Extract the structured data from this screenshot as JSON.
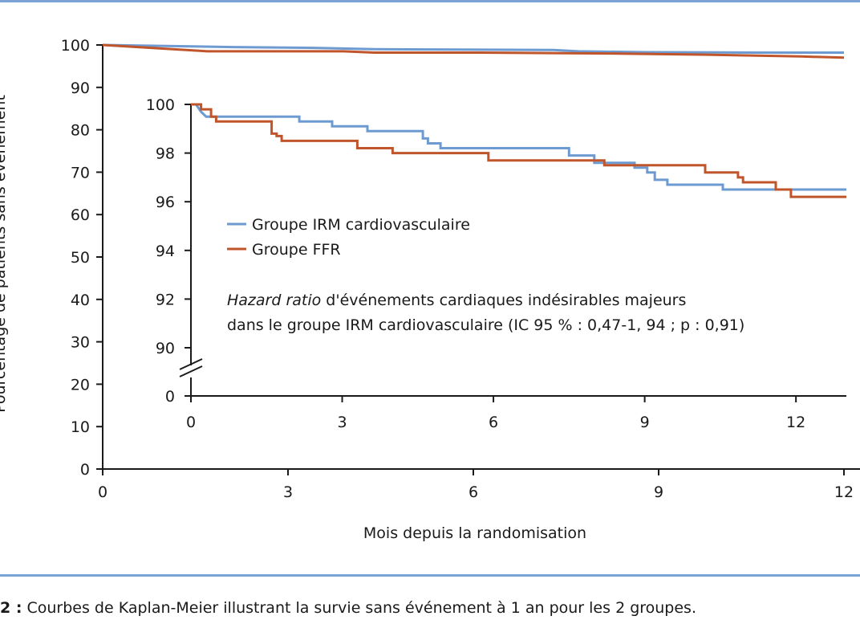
{
  "colors": {
    "irm": "#6d9bd1",
    "ffr": "#c0552b",
    "rule": "#7ba3d6",
    "axis": "#1a1a1a"
  },
  "caption": {
    "number": "2 :",
    "text": "Courbes de Kaplan-Meier illustrant la survie sans événement à 1 an pour les 2 groupes."
  },
  "chart_data": [
    {
      "type": "line",
      "name": "main",
      "xlabel": "Mois depuis la randomisation",
      "ylabel": "Pourcentage de patients sans événement",
      "xlim": [
        0,
        12
      ],
      "ylim": [
        0,
        100
      ],
      "xticks": [
        "0",
        "3",
        "6",
        "9",
        "12"
      ],
      "yticks": [
        "0",
        "10",
        "20",
        "30",
        "40",
        "50",
        "60",
        "70",
        "80",
        "90",
        "100"
      ],
      "grid": false,
      "series": [
        {
          "name": "Groupe IRM cardiovasculaire",
          "color": "#6d9bd1",
          "x": [
            0,
            2.1,
            3.5,
            4.4,
            7.3,
            7.7,
            8.8,
            10.6,
            12
          ],
          "y": [
            100,
            99.5,
            99.3,
            99.0,
            98.8,
            98.5,
            98.3,
            98.2,
            98.2
          ]
        },
        {
          "name": "Groupe FFR",
          "color": "#c0552b",
          "x": [
            0,
            1.7,
            3.9,
            4.4,
            6.1,
            8.2,
            9.8,
            11.3,
            12
          ],
          "y": [
            100,
            98.5,
            98.5,
            98.2,
            98.2,
            98.0,
            97.7,
            97.3,
            97.0
          ]
        }
      ]
    },
    {
      "type": "line",
      "name": "inset",
      "xlim": [
        0,
        13
      ],
      "ylim": [
        90,
        100
      ],
      "xticks": [
        "0",
        "3",
        "6",
        "9",
        "12"
      ],
      "yticks": [
        "100",
        "98",
        "96",
        "94",
        "92",
        "90"
      ],
      "y_break_label": "0",
      "legend_position": "center",
      "annotation": {
        "italic": "Hazard ratio",
        "line1": " d'événements cardiaques indésirables majeurs",
        "line2": "dans le groupe IRM cardiovasculaire (IC 95 % : 0,47-1, 94 ; p : 0,91)"
      },
      "series": [
        {
          "name": "Groupe IRM cardiovasculaire",
          "color": "#6d9bd1",
          "x": [
            0,
            0.1,
            0.2,
            0.3,
            2.15,
            2.15,
            2.8,
            2.8,
            3.5,
            3.5,
            4.6,
            4.6,
            4.7,
            4.7,
            4.95,
            4.95,
            7.5,
            7.5,
            8.0,
            8.0,
            8.8,
            8.8,
            9.05,
            9.05,
            9.2,
            9.2,
            9.45,
            9.45,
            10.55,
            10.55,
            11.3,
            11.3,
            13
          ],
          "y": [
            100,
            100,
            99.7,
            99.5,
            99.5,
            99.3,
            99.3,
            99.1,
            99.1,
            98.9,
            98.9,
            98.6,
            98.6,
            98.4,
            98.4,
            98.2,
            98.2,
            97.9,
            97.9,
            97.6,
            97.6,
            97.4,
            97.4,
            97.2,
            97.2,
            96.9,
            96.9,
            96.7,
            96.7,
            96.5,
            96.5,
            96.5,
            96.5
          ]
        },
        {
          "name": "Groupe FFR",
          "color": "#c0552b",
          "x": [
            0,
            0.2,
            0.2,
            0.4,
            0.4,
            0.5,
            0.5,
            1.6,
            1.6,
            1.7,
            1.7,
            1.8,
            1.8,
            3.3,
            3.3,
            4.0,
            4.0,
            5.9,
            5.9,
            8.2,
            8.2,
            10.2,
            10.2,
            10.85,
            10.85,
            10.95,
            10.95,
            11.6,
            11.6,
            11.9,
            11.9,
            13
          ],
          "y": [
            100,
            100,
            99.8,
            99.8,
            99.5,
            99.5,
            99.3,
            99.3,
            98.8,
            98.8,
            98.7,
            98.7,
            98.5,
            98.5,
            98.2,
            98.2,
            98.0,
            98.0,
            97.7,
            97.7,
            97.5,
            97.5,
            97.2,
            97.2,
            97.0,
            97.0,
            96.8,
            96.8,
            96.5,
            96.5,
            96.2,
            96.2
          ]
        }
      ]
    }
  ]
}
